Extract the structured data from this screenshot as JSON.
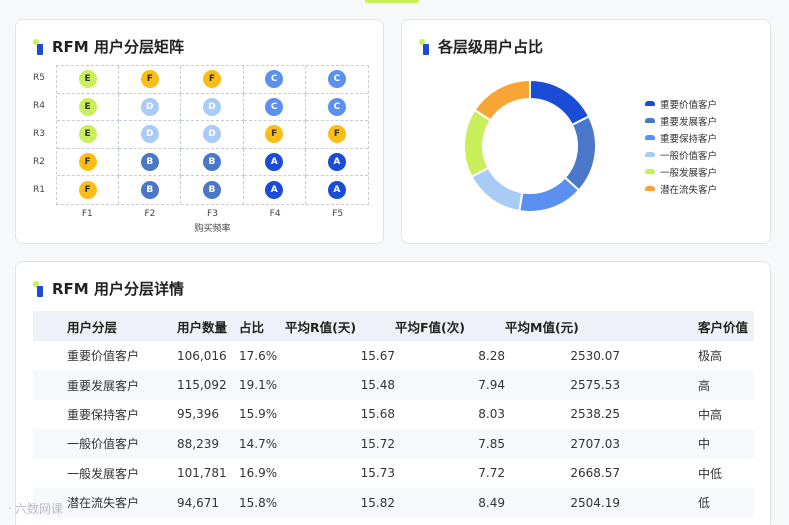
{
  "matrix": {
    "title": "RFM 用户分层矩阵",
    "row_labels": [
      "R5",
      "R4",
      "R3",
      "R2",
      "R1"
    ],
    "col_labels": [
      "F1",
      "F2",
      "F3",
      "F4",
      "F5"
    ],
    "x_axis_label": "购买频率",
    "cells": [
      [
        "E",
        "F",
        "F",
        "C",
        "C"
      ],
      [
        "E",
        "D",
        "D",
        "C",
        "C"
      ],
      [
        "E",
        "D",
        "D",
        "F",
        "F"
      ],
      [
        "F",
        "B",
        "B",
        "A",
        "A"
      ],
      [
        "F",
        "B",
        "B",
        "A",
        "A"
      ]
    ],
    "letter_colors": {
      "A": {
        "bg": "#1a4cd6",
        "fg": "#ffffff"
      },
      "B": {
        "bg": "#4a78c8",
        "fg": "#ffffff"
      },
      "C": {
        "bg": "#5b8ff0",
        "fg": "#ffffff"
      },
      "D": {
        "bg": "#a9ccf7",
        "fg": "#ffffff"
      },
      "E": {
        "bg": "#c9ef5a",
        "fg": "#333333"
      },
      "F": {
        "bg": "#fbbd17",
        "fg": "#333333"
      }
    }
  },
  "pie": {
    "title": "各层级用户占比",
    "chart_data": {
      "type": "pie",
      "labels": [
        "重要价值客户",
        "重要发展客户",
        "重要保持客户",
        "一般价值客户",
        "一般发展客户",
        "潜在流失客户"
      ],
      "values": [
        17.6,
        19.1,
        15.9,
        14.7,
        16.9,
        15.8
      ],
      "colors": [
        "#1a4cd6",
        "#4a78c8",
        "#5b8ff0",
        "#a9ccf7",
        "#c9ef5a",
        "#f7a535"
      ],
      "legend_position": "right"
    }
  },
  "table": {
    "title": "RFM 用户分层详情",
    "headers": [
      "用户分层",
      "用户数量",
      "占比",
      "平均R值(天)",
      "平均F值(次)",
      "平均M值(元)",
      "客户价值"
    ],
    "rows": [
      [
        "重要价值客户",
        "106,016",
        "17.6%",
        "15.67",
        "8.28",
        "2530.07",
        "极高"
      ],
      [
        "重要发展客户",
        "115,092",
        "19.1%",
        "15.48",
        "7.94",
        "2575.53",
        "高"
      ],
      [
        "重要保持客户",
        "95,396",
        "15.9%",
        "15.68",
        "8.03",
        "2538.25",
        "中高"
      ],
      [
        "一般价值客户",
        "88,239",
        "14.7%",
        "15.72",
        "7.85",
        "2707.03",
        "中"
      ],
      [
        "一般发展客户",
        "101,781",
        "16.9%",
        "15.73",
        "7.72",
        "2668.57",
        "中低"
      ],
      [
        "潜在流失客户",
        "94,671",
        "15.8%",
        "15.82",
        "8.49",
        "2504.19",
        "低"
      ]
    ]
  },
  "watermark": "六数网课"
}
